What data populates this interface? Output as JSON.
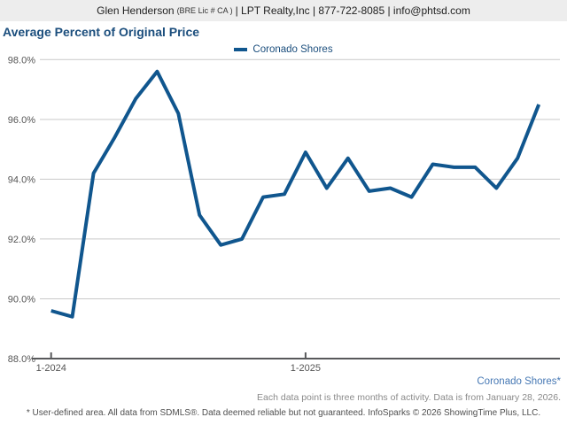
{
  "header": {
    "agent": "Glen Henderson",
    "license": "(BRE Lic # CA )",
    "contact": "| LPT Realty,Inc | 877-722-8085 | info@phtsd.com"
  },
  "title": "Average Percent of Original Price",
  "legend": {
    "label": "Coronado Shores"
  },
  "chart_data": {
    "type": "line",
    "title": "Average Percent of Original Price",
    "x": [
      "1-2024",
      "2-2024",
      "3-2024",
      "4-2024",
      "5-2024",
      "6-2024",
      "7-2024",
      "8-2024",
      "9-2024",
      "10-2024",
      "11-2024",
      "12-2024",
      "1-2025",
      "2-2025",
      "3-2025",
      "4-2025",
      "5-2025",
      "6-2025",
      "7-2025",
      "8-2025",
      "9-2025",
      "10-2025",
      "11-2025",
      "12-2025"
    ],
    "series": [
      {
        "name": "Coronado Shores",
        "color": "#10568e",
        "values": [
          89.6,
          89.4,
          94.2,
          95.4,
          96.7,
          97.6,
          96.2,
          92.8,
          91.8,
          92.0,
          93.4,
          93.5,
          94.9,
          93.7,
          94.7,
          93.6,
          93.7,
          93.4,
          94.5,
          94.4,
          94.4,
          93.7,
          94.7,
          96.5
        ]
      }
    ],
    "ylim": [
      88.0,
      98.0
    ],
    "y_ticks": [
      88.0,
      90.0,
      92.0,
      94.0,
      96.0,
      98.0
    ],
    "y_tick_suffix": "%",
    "x_tick_labels": [
      "1-2024",
      "1-2025"
    ],
    "x_tick_indices": [
      0,
      12
    ],
    "grid": "horizontal",
    "legend_position": "top-center",
    "xlabel": "",
    "ylabel": ""
  },
  "footnotes": {
    "series_note": "Coronado Shores*",
    "data_note": "Each data point is three months of activity. Data is from January 28, 2026.",
    "disclaimer": "* User-defined area. All data from SDMLS®. Data deemed reliable but not guaranteed. InfoSparks © 2026 ShowingTime Plus, LLC."
  },
  "colors": {
    "header_bg": "#ededed",
    "title_text": "#1b4e7d",
    "series_line": "#10568e",
    "series_note_text": "#4678b4",
    "gridline": "#c9c9c9",
    "axis_line": "#58595b",
    "tick_label": "#555555"
  }
}
